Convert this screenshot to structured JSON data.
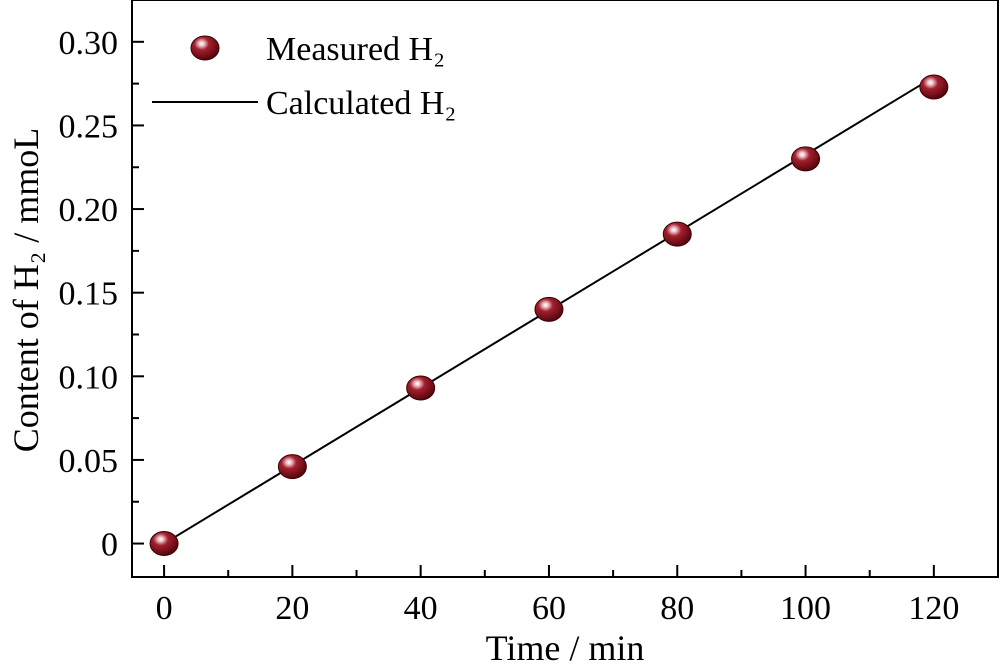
{
  "chart_data": {
    "type": "scatter",
    "xlabel": "Time / min",
    "ylabel": "Content of H₂ / mmoL",
    "xlim": [
      -5,
      130
    ],
    "ylim": [
      -0.02,
      0.325
    ],
    "x_ticks": [
      0,
      20,
      40,
      60,
      80,
      100,
      120
    ],
    "x_tick_labels": [
      "0",
      "20",
      "40",
      "60",
      "80",
      "100",
      "120"
    ],
    "y_ticks": [
      0,
      0.05,
      0.1,
      0.15,
      0.2,
      0.25,
      0.3
    ],
    "y_tick_labels": [
      "0",
      "0.05",
      "0.10",
      "0.15",
      "0.20",
      "0.25",
      "0.30"
    ],
    "grid": false,
    "legend_position": "top-left",
    "series": [
      {
        "name": "Measured H₂",
        "kind": "scatter",
        "marker_color": "#7a0a14",
        "x": [
          0,
          20,
          40,
          60,
          80,
          100,
          120
        ],
        "y": [
          0,
          0.046,
          0.093,
          0.14,
          0.185,
          0.23,
          0.273
        ]
      },
      {
        "name": "Calculated H₂",
        "kind": "line",
        "line_color": "#000000",
        "x": [
          0,
          120
        ],
        "y": [
          0,
          0.279
        ]
      }
    ]
  }
}
